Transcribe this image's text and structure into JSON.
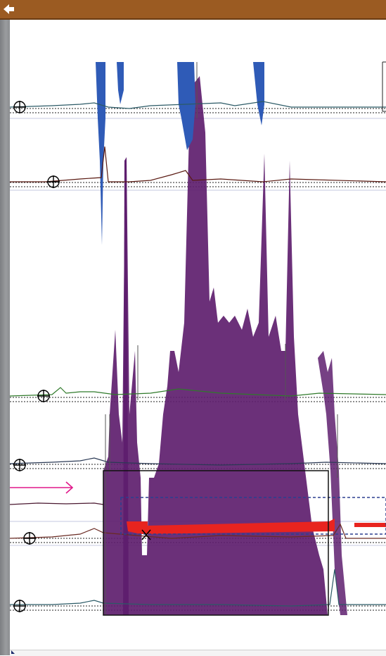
{
  "app": {
    "topbar_color": "#9b5b22",
    "back_icon": "back-arrow-icon",
    "rail_color": "#8b8d90"
  },
  "traces": [
    {
      "name": "trace-1",
      "color": "#2b5a66"
    },
    {
      "name": "trace-2",
      "color": "#5a1a12"
    },
    {
      "name": "trace-3",
      "color": "#2f7a2a"
    },
    {
      "name": "trace-4",
      "color": "#2b3a55"
    },
    {
      "name": "trace-5",
      "color": "#4a1830"
    },
    {
      "name": "trace-6",
      "color": "#6a2a22"
    },
    {
      "name": "trace-7",
      "color": "#2b5a66"
    }
  ],
  "overlays": {
    "blue_color": "#2f5bb7",
    "purple_color": "#5e1e6e",
    "red_color": "#e8241f",
    "arrow_color": "#e0198a",
    "selection_color": "#2b3f8f"
  },
  "markers": {
    "crosshair_icon": "crosshair-icon",
    "cross_icon": "x-mark-icon"
  }
}
